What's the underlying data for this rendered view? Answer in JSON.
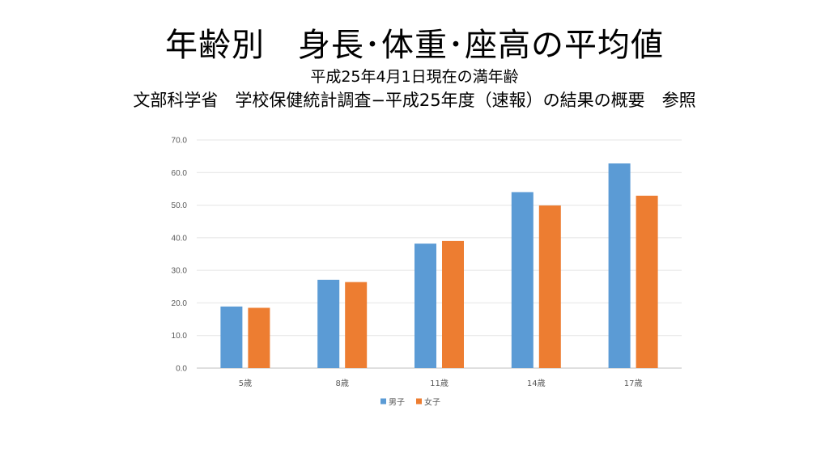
{
  "slide": {
    "title": "年齢別　身長･体重･座高の平均値",
    "subtitle_line1": "平成25年4月1日現在の満年齢",
    "subtitle_line2": "文部科学省　学校保健統計調査−平成25年度（速報）の結果の概要　参照"
  },
  "chart_data": {
    "type": "bar",
    "title": "",
    "xlabel": "",
    "ylabel": "",
    "categories": [
      "5歳",
      "8歳",
      "11歳",
      "14歳",
      "17歳"
    ],
    "ylim": [
      0,
      70
    ],
    "yticks": [
      "0.0",
      "10.0",
      "20.0",
      "30.0",
      "40.0",
      "50.0",
      "60.0",
      "70.0"
    ],
    "grid": true,
    "legend_position": "bottom",
    "series": [
      {
        "name": "男子",
        "color": "#5B9BD5",
        "values": [
          18.9,
          27.1,
          38.2,
          54.0,
          62.8
        ]
      },
      {
        "name": "女子",
        "color": "#ED7D31",
        "values": [
          18.5,
          26.4,
          39.0,
          49.9,
          52.9
        ]
      }
    ]
  }
}
